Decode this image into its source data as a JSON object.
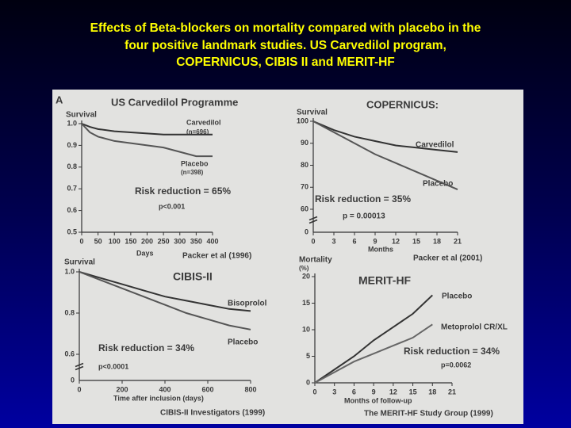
{
  "title_lines": [
    "Effects of Beta-blockers on mortality compared with placebo in the",
    "four positive landmark studies.  US Carvedilol program,",
    "COPERNICUS, CIBIS II and MERIT-HF"
  ],
  "chart_data": [
    {
      "type": "line",
      "title": "US Carvedilol Programme",
      "ylabel": "Survival",
      "xlabel": "Days",
      "annotations": [
        "A",
        "Carvedilol",
        "(n=696)",
        "Placebo",
        "(n=398)",
        "Risk reduction = 65%",
        "p<0.001",
        "Packer et al (1996)"
      ],
      "x": [
        0,
        25,
        50,
        100,
        150,
        200,
        250,
        300,
        350,
        400
      ],
      "series": [
        {
          "name": "Carvedilol",
          "color": "#333333",
          "values": [
            1.0,
            0.985,
            0.975,
            0.965,
            0.96,
            0.955,
            0.95,
            0.95,
            0.95,
            0.95
          ]
        },
        {
          "name": "Placebo",
          "color": "#555555",
          "values": [
            1.0,
            0.96,
            0.94,
            0.92,
            0.91,
            0.9,
            0.89,
            0.87,
            0.85,
            0.85
          ]
        }
      ],
      "xlim": [
        0,
        400
      ],
      "xticks": [
        0,
        50,
        100,
        150,
        200,
        250,
        300,
        350,
        400
      ],
      "ylim": [
        0.5,
        1.0
      ],
      "yticks": [
        0.5,
        0.6,
        0.7,
        0.8,
        0.9,
        {
          "value": 1.0,
          "label": "1.0"
        }
      ]
    },
    {
      "type": "line",
      "title": "COPERNICUS:",
      "ylabel": "Survival",
      "xlabel": "Months",
      "annotations": [
        "Carvedilol",
        "Placebo",
        "Risk reduction = 35%",
        "p = 0.00013",
        "Packer et al (2001)"
      ],
      "x": [
        0,
        3,
        6,
        9,
        12,
        15,
        18,
        21
      ],
      "series": [
        {
          "name": "Carvedilol",
          "color": "#333333",
          "values": [
            100,
            96,
            93,
            91,
            89,
            88,
            87,
            86
          ]
        },
        {
          "name": "Placebo",
          "color": "#555555",
          "values": [
            100,
            95,
            90,
            85,
            81,
            77,
            73,
            69
          ]
        }
      ],
      "xlim": [
        0,
        21
      ],
      "xticks": [
        0,
        3,
        6,
        9,
        12,
        15,
        18,
        21
      ],
      "ylim": [
        60,
        100
      ],
      "yticks": [
        60,
        70,
        80,
        90,
        100
      ],
      "ybreak": 0
    },
    {
      "type": "line",
      "title": "CIBIS-II",
      "ylabel": "Survival",
      "xlabel": "Time after inclusion (days)",
      "annotations": [
        "Bisoprolol",
        "Placebo",
        "Risk reduction = 34%",
        "p<0.0001",
        "CIBIS-II Investigators (1999)"
      ],
      "x": [
        0,
        100,
        200,
        300,
        400,
        500,
        600,
        700,
        800
      ],
      "series": [
        {
          "name": "Bisoprolol",
          "color": "#333333",
          "values": [
            1.0,
            0.97,
            0.94,
            0.91,
            0.88,
            0.86,
            0.84,
            0.82,
            0.81
          ]
        },
        {
          "name": "Placebo",
          "color": "#555555",
          "values": [
            1.0,
            0.96,
            0.92,
            0.88,
            0.84,
            0.8,
            0.77,
            0.74,
            0.72
          ]
        }
      ],
      "xlim": [
        0,
        800
      ],
      "xticks": [
        0,
        200,
        400,
        600,
        800
      ],
      "ylim": [
        0.6,
        1.0
      ],
      "yticks": [
        0.6,
        0.8,
        {
          "value": 1.0,
          "label": "1.0"
        }
      ],
      "ybreak": 0
    },
    {
      "type": "line",
      "title": "MERIT-HF",
      "ylabel": "Mortality",
      "xlabel": "Months of follow-up",
      "annotations": [
        "(%)",
        "Placebo",
        "Metoprolol CR/XL",
        "Risk reduction = 34%",
        "p=0.0062",
        "The MERIT-HF Study Group (1999)"
      ],
      "x": [
        0,
        3,
        6,
        9,
        12,
        15,
        18
      ],
      "series": [
        {
          "name": "Placebo",
          "color": "#333333",
          "values": [
            0,
            2.5,
            5,
            8,
            10.5,
            13,
            16.5
          ]
        },
        {
          "name": "Metoprolol CR/XL",
          "color": "#666666",
          "values": [
            0,
            2,
            4,
            5.5,
            7,
            8.5,
            11
          ]
        }
      ],
      "xlim": [
        0,
        21
      ],
      "xticks": [
        0,
        3,
        6,
        9,
        12,
        15,
        18,
        21
      ],
      "ylim": [
        0,
        20
      ],
      "yticks": [
        0,
        5,
        10,
        15,
        20
      ]
    }
  ]
}
